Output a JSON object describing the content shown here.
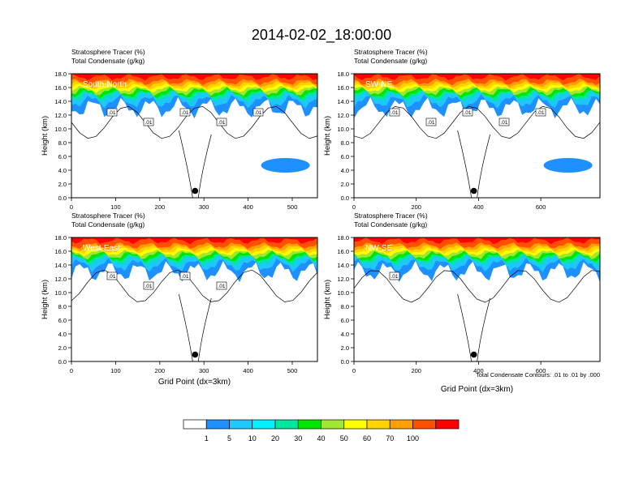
{
  "title": "2014-02-02_18:00:00",
  "colorbar": {
    "colors": [
      "#ffffff",
      "#1e90ff",
      "#1ec8ff",
      "#00f0ff",
      "#00e8a0",
      "#00e600",
      "#a0e632",
      "#ffff00",
      "#ffd200",
      "#ffa000",
      "#ff5000",
      "#ff0000"
    ],
    "labels": [
      "1",
      "5",
      "10",
      "20",
      "30",
      "40",
      "50",
      "60",
      "70",
      "100"
    ]
  },
  "panel_header": {
    "line1": "Stratosphere Tracer   (%)",
    "line2": "Total Condensate   (g/kg)"
  },
  "footnote": "Total Condensate Contours: .01 to .01 by .000",
  "chart_data": [
    {
      "type": "contour",
      "panel": "South-North",
      "ylabel": "Height (km)",
      "xlabel": "",
      "xlim": [
        0,
        557
      ],
      "ylim": [
        0,
        18
      ],
      "xticks": [
        "0",
        "100",
        "200",
        "300",
        "400",
        "500"
      ],
      "yticks": [
        "0.0",
        "2.0",
        "4.0",
        "6.0",
        "8.0",
        "10.0",
        "12.0",
        "14.0",
        "16.0",
        "18.0"
      ],
      "point": {
        "x": 280,
        "y": 1.0
      },
      "contour_labels": [
        ".01",
        ".01",
        ".01",
        ".01",
        ".01"
      ]
    },
    {
      "type": "contour",
      "panel": "SW-NE",
      "ylabel": "Height (km)",
      "xlabel": "",
      "xlim": [
        0,
        790
      ],
      "ylim": [
        0,
        18
      ],
      "xticks": [
        "0",
        "200",
        "400",
        "600"
      ],
      "yticks": [
        "0.0",
        "2.0",
        "4.0",
        "6.0",
        "8.0",
        "10.0",
        "12.0",
        "14.0",
        "16.0",
        "18.0"
      ],
      "point": {
        "x": 385,
        "y": 1.0
      },
      "contour_labels": [
        ".01",
        ".01",
        ".01",
        ".01",
        ".01"
      ]
    },
    {
      "type": "contour",
      "panel": "West-East",
      "ylabel": "Height (km)",
      "xlabel": "Grid Point (dx=3km)",
      "xlim": [
        0,
        557
      ],
      "ylim": [
        0,
        18
      ],
      "xticks": [
        "0",
        "100",
        "200",
        "300",
        "400",
        "500"
      ],
      "yticks": [
        "0.0",
        "2.0",
        "4.0",
        "6.0",
        "8.0",
        "10.0",
        "12.0",
        "14.0",
        "16.0",
        "18.0"
      ],
      "point": {
        "x": 280,
        "y": 1.0
      },
      "contour_labels": [
        ".01",
        ".01",
        ".01",
        ".01"
      ]
    },
    {
      "type": "contour",
      "panel": "NW-SE",
      "ylabel": "Height (km)",
      "xlabel": "Grid Point (dx=3km)",
      "xlim": [
        0,
        790
      ],
      "ylim": [
        0,
        18
      ],
      "xticks": [
        "0",
        "200",
        "400",
        "600"
      ],
      "yticks": [
        "0.0",
        "2.0",
        "4.0",
        "6.0",
        "8.0",
        "10.0",
        "12.0",
        "14.0",
        "16.0",
        "18.0"
      ],
      "point": {
        "x": 385,
        "y": 1.0
      },
      "contour_labels": [
        ".01"
      ]
    }
  ]
}
